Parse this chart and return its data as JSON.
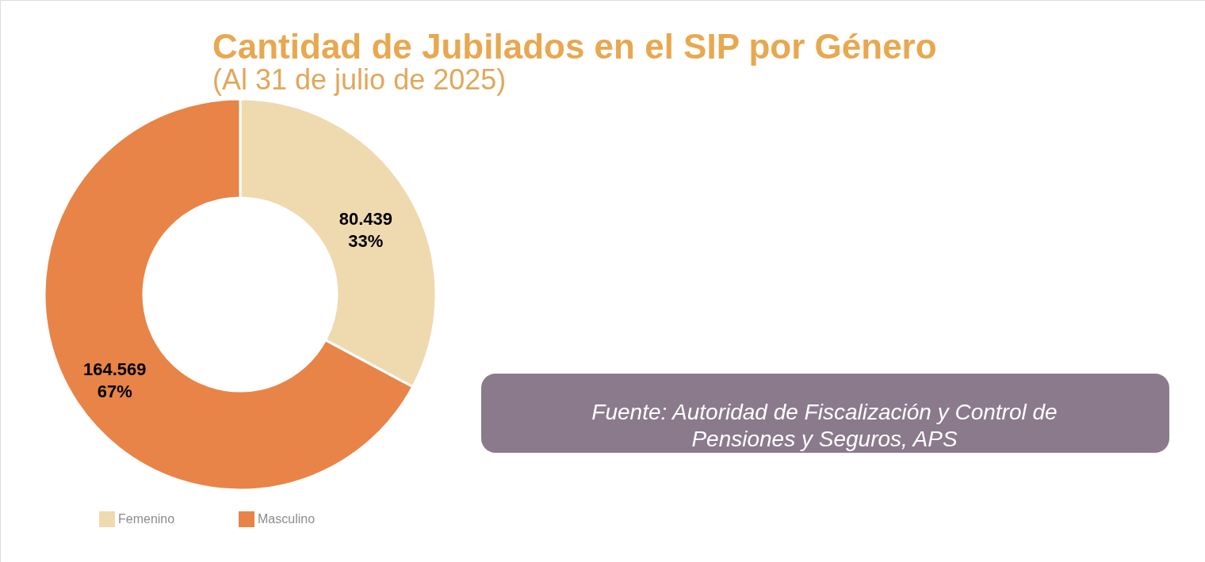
{
  "chart_data": {
    "type": "donut",
    "title": "Cantidad de Jubilados en el SIP por Género",
    "subtitle": "(Al 31 de julio de 2025)",
    "categories": [
      "Femenino",
      "Masculino"
    ],
    "values": [
      80439,
      164569
    ],
    "colors": [
      "#efd9af",
      "#e88447"
    ],
    "value_labels": [
      "80.439\n33%",
      "164.569\n67%"
    ],
    "legend": "bottom left",
    "annotations": [
      "Fuente: Autoridad de Fiscalización y Control de Pensiones y  Seguros, APS"
    ]
  }
}
